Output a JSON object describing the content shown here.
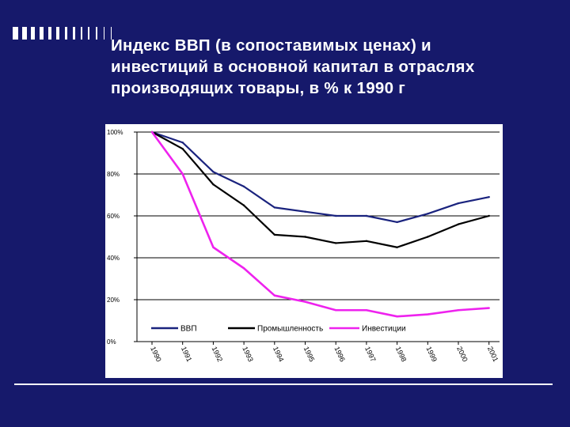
{
  "slide": {
    "title_lines": [
      "Индекс ВВП  (в сопоставимых ценах) и",
      "инвестиций в основной капитал  в отраслях",
      "производящих товары, в % к 1990 г"
    ],
    "background_color": "#16196b"
  },
  "chart_data": {
    "type": "line",
    "x": [
      "1990",
      "1991",
      "1992",
      "1993",
      "1994",
      "1995",
      "1996",
      "1997",
      "1998",
      "1999",
      "2000",
      "2001"
    ],
    "ylim": [
      0,
      100
    ],
    "y_ticks": [
      0,
      20,
      40,
      60,
      80,
      100
    ],
    "y_tick_labels": [
      "0%",
      "20%",
      "40%",
      "60%",
      "80%",
      "100%"
    ],
    "grid": true,
    "legend_placement": "bottom-center inside plot",
    "series": [
      {
        "name": "ВВП",
        "color": "#1a237e",
        "values": [
          100,
          95,
          81,
          74,
          64,
          62,
          60,
          60,
          57,
          61,
          66,
          69
        ]
      },
      {
        "name": "Промышленность",
        "color": "#000000",
        "values": [
          100,
          92,
          75,
          65,
          51,
          50,
          47,
          48,
          45,
          50,
          56,
          60
        ]
      },
      {
        "name": "Инвестиции",
        "color": "#ee22ee",
        "values": [
          100,
          80,
          45,
          35,
          22,
          19,
          15,
          15,
          12,
          13,
          15,
          16
        ]
      }
    ]
  }
}
